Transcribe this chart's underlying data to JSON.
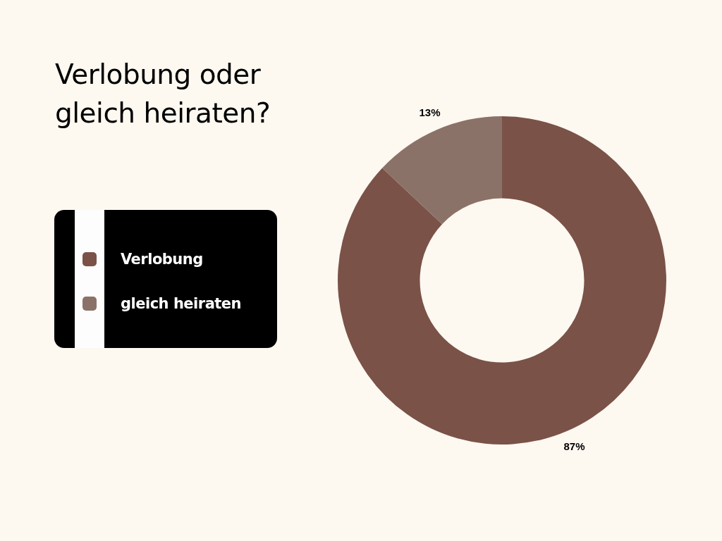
{
  "chart_data": {
    "type": "donut",
    "title": "Verlobung oder gleich heiraten?",
    "categories": [
      "Verlobung",
      "gleich heiraten"
    ],
    "values": [
      87,
      13
    ],
    "value_labels": [
      "87%",
      "13%"
    ],
    "colors": [
      "#7a5248",
      "#8b7269"
    ],
    "legend": "left"
  }
}
